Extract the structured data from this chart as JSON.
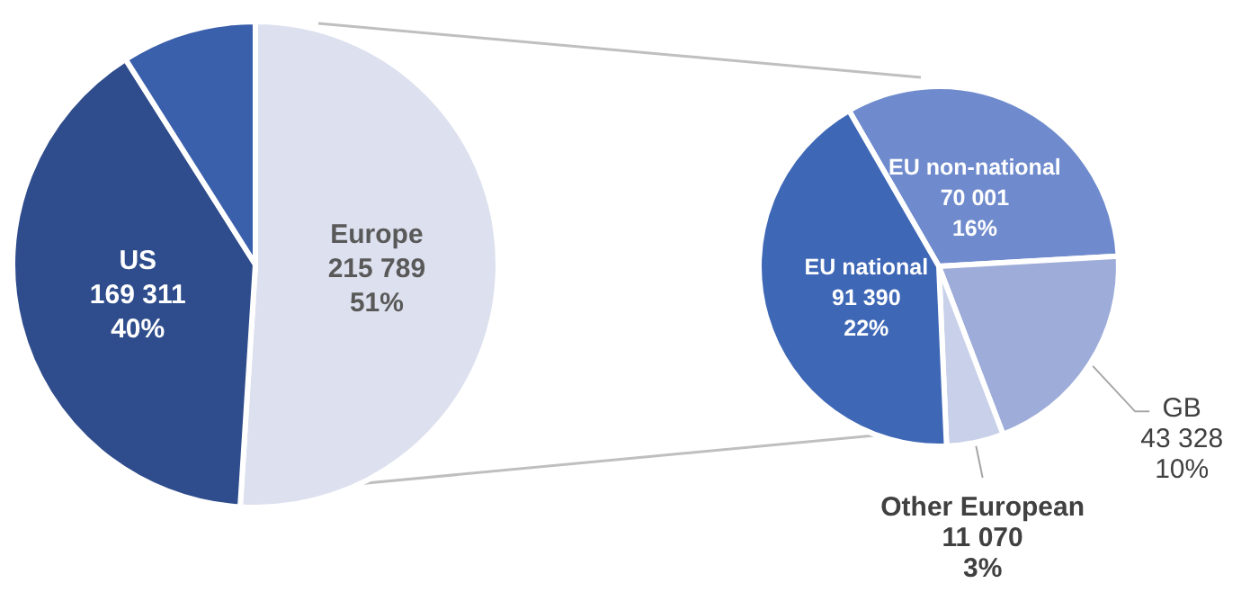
{
  "chart_data": [
    {
      "type": "pie",
      "categories": [
        "Europe",
        "US",
        null
      ],
      "values": [
        215789,
        169311,
        38000
      ],
      "colors": [
        "#dde1ef",
        "#2f4d8c",
        "#3a5fab"
      ],
      "value_labels": [
        "215 789\n51%",
        "169 311\n40%",
        null
      ]
    },
    {
      "type": "pie",
      "categories": [
        "EU non-national",
        "GB",
        "Other European",
        "EU national"
      ],
      "values": [
        70001,
        43328,
        11070,
        91390
      ],
      "colors": [
        "#6f8bcd",
        "#9dacd9",
        "#c9d1ea",
        "#3e67b6"
      ],
      "value_labels": [
        "70 001\n16%",
        "43 328\n10%",
        "11 070\n3%",
        "91 390\n22%"
      ]
    }
  ]
}
